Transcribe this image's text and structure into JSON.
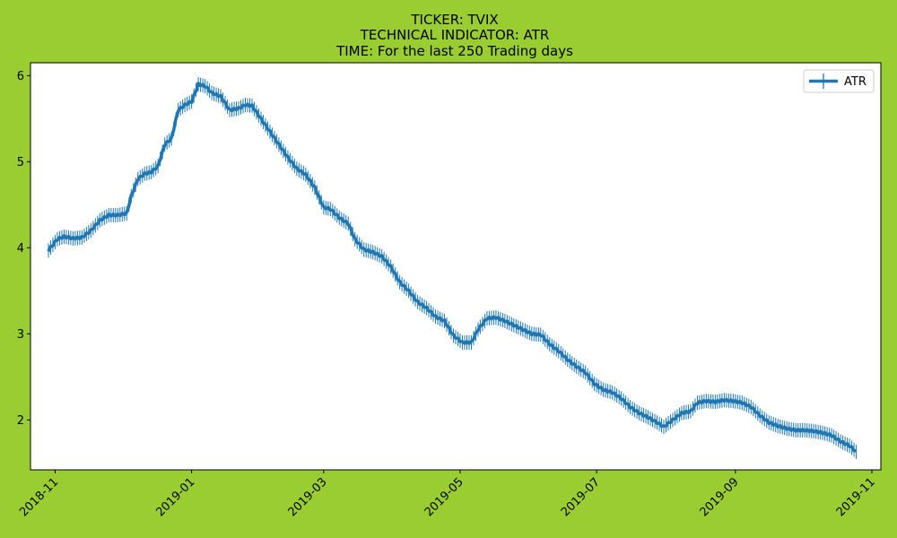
{
  "chart_data": {
    "type": "line",
    "title_lines": [
      "TICKER:  TVIX",
      "TECHNICAL INDICATOR:  ATR",
      "TIME: For the last 250 Trading days"
    ],
    "xlabel": "",
    "ylabel": "",
    "x_ticks": [
      "2018-11",
      "2019-01",
      "2019-03",
      "2019-05",
      "2019-07",
      "2019-09",
      "2019-11"
    ],
    "y_ticks": [
      2,
      3,
      4,
      5,
      6
    ],
    "xlim": [
      "2018-10-21",
      "2019-11-05"
    ],
    "ylim": [
      1.42,
      6.15
    ],
    "grid": false,
    "legend_position": "top-right",
    "colors": {
      "background": "#9acd32",
      "plot_bg": "#ffffff",
      "series": "#1f77b4"
    },
    "series": [
      {
        "name": "ATR",
        "marker": "vertical-line",
        "points": [
          [
            "2018-10-29",
            3.97
          ],
          [
            "2018-11-02",
            4.1
          ],
          [
            "2018-11-05",
            4.13
          ],
          [
            "2018-11-09",
            4.11
          ],
          [
            "2018-11-13",
            4.12
          ],
          [
            "2018-11-17",
            4.2
          ],
          [
            "2018-11-21",
            4.32
          ],
          [
            "2018-11-25",
            4.38
          ],
          [
            "2018-11-29",
            4.38
          ],
          [
            "2018-12-03",
            4.4
          ],
          [
            "2018-12-05",
            4.6
          ],
          [
            "2018-12-08",
            4.8
          ],
          [
            "2018-12-11",
            4.86
          ],
          [
            "2018-12-14",
            4.88
          ],
          [
            "2018-12-17",
            4.95
          ],
          [
            "2018-12-20",
            5.2
          ],
          [
            "2018-12-23",
            5.27
          ],
          [
            "2018-12-26",
            5.6
          ],
          [
            "2018-12-29",
            5.66
          ],
          [
            "2019-01-01",
            5.7
          ],
          [
            "2019-01-04",
            5.9
          ],
          [
            "2019-01-07",
            5.88
          ],
          [
            "2019-01-10",
            5.8
          ],
          [
            "2019-01-14",
            5.76
          ],
          [
            "2019-01-18",
            5.6
          ],
          [
            "2019-01-22",
            5.62
          ],
          [
            "2019-01-25",
            5.66
          ],
          [
            "2019-01-28",
            5.65
          ],
          [
            "2019-02-01",
            5.5
          ],
          [
            "2019-02-05",
            5.35
          ],
          [
            "2019-02-09",
            5.2
          ],
          [
            "2019-02-13",
            5.05
          ],
          [
            "2019-02-17",
            4.92
          ],
          [
            "2019-02-21",
            4.85
          ],
          [
            "2019-02-25",
            4.7
          ],
          [
            "2019-03-01",
            4.47
          ],
          [
            "2019-03-04",
            4.45
          ],
          [
            "2019-03-08",
            4.35
          ],
          [
            "2019-03-12",
            4.28
          ],
          [
            "2019-03-15",
            4.1
          ],
          [
            "2019-03-19",
            3.98
          ],
          [
            "2019-03-23",
            3.95
          ],
          [
            "2019-03-27",
            3.9
          ],
          [
            "2019-03-31",
            3.78
          ],
          [
            "2019-04-04",
            3.6
          ],
          [
            "2019-04-08",
            3.5
          ],
          [
            "2019-04-12",
            3.37
          ],
          [
            "2019-04-16",
            3.3
          ],
          [
            "2019-04-20",
            3.2
          ],
          [
            "2019-04-24",
            3.15
          ],
          [
            "2019-04-28",
            2.98
          ],
          [
            "2019-05-02",
            2.9
          ],
          [
            "2019-05-06",
            2.9
          ],
          [
            "2019-05-09",
            3.05
          ],
          [
            "2019-05-13",
            3.18
          ],
          [
            "2019-05-17",
            3.19
          ],
          [
            "2019-05-21",
            3.15
          ],
          [
            "2019-05-25",
            3.1
          ],
          [
            "2019-05-29",
            3.05
          ],
          [
            "2019-06-02",
            3.0
          ],
          [
            "2019-06-06",
            2.99
          ],
          [
            "2019-06-10",
            2.88
          ],
          [
            "2019-06-14",
            2.8
          ],
          [
            "2019-06-18",
            2.7
          ],
          [
            "2019-06-22",
            2.62
          ],
          [
            "2019-06-26",
            2.55
          ],
          [
            "2019-06-30",
            2.42
          ],
          [
            "2019-07-04",
            2.35
          ],
          [
            "2019-07-08",
            2.32
          ],
          [
            "2019-07-12",
            2.25
          ],
          [
            "2019-07-16",
            2.15
          ],
          [
            "2019-07-20",
            2.08
          ],
          [
            "2019-07-24",
            2.03
          ],
          [
            "2019-07-28",
            1.97
          ],
          [
            "2019-07-31",
            1.92
          ],
          [
            "2019-08-04",
            2.0
          ],
          [
            "2019-08-08",
            2.08
          ],
          [
            "2019-08-12",
            2.1
          ],
          [
            "2019-08-15",
            2.2
          ],
          [
            "2019-08-19",
            2.22
          ],
          [
            "2019-08-23",
            2.21
          ],
          [
            "2019-08-27",
            2.23
          ],
          [
            "2019-08-31",
            2.22
          ],
          [
            "2019-09-04",
            2.2
          ],
          [
            "2019-09-08",
            2.15
          ],
          [
            "2019-09-12",
            2.05
          ],
          [
            "2019-09-16",
            1.97
          ],
          [
            "2019-09-20",
            1.93
          ],
          [
            "2019-09-24",
            1.9
          ],
          [
            "2019-09-28",
            1.88
          ],
          [
            "2019-10-02",
            1.88
          ],
          [
            "2019-10-06",
            1.87
          ],
          [
            "2019-10-10",
            1.85
          ],
          [
            "2019-10-14",
            1.82
          ],
          [
            "2019-10-18",
            1.75
          ],
          [
            "2019-10-22",
            1.7
          ],
          [
            "2019-10-25",
            1.63
          ]
        ]
      }
    ]
  }
}
